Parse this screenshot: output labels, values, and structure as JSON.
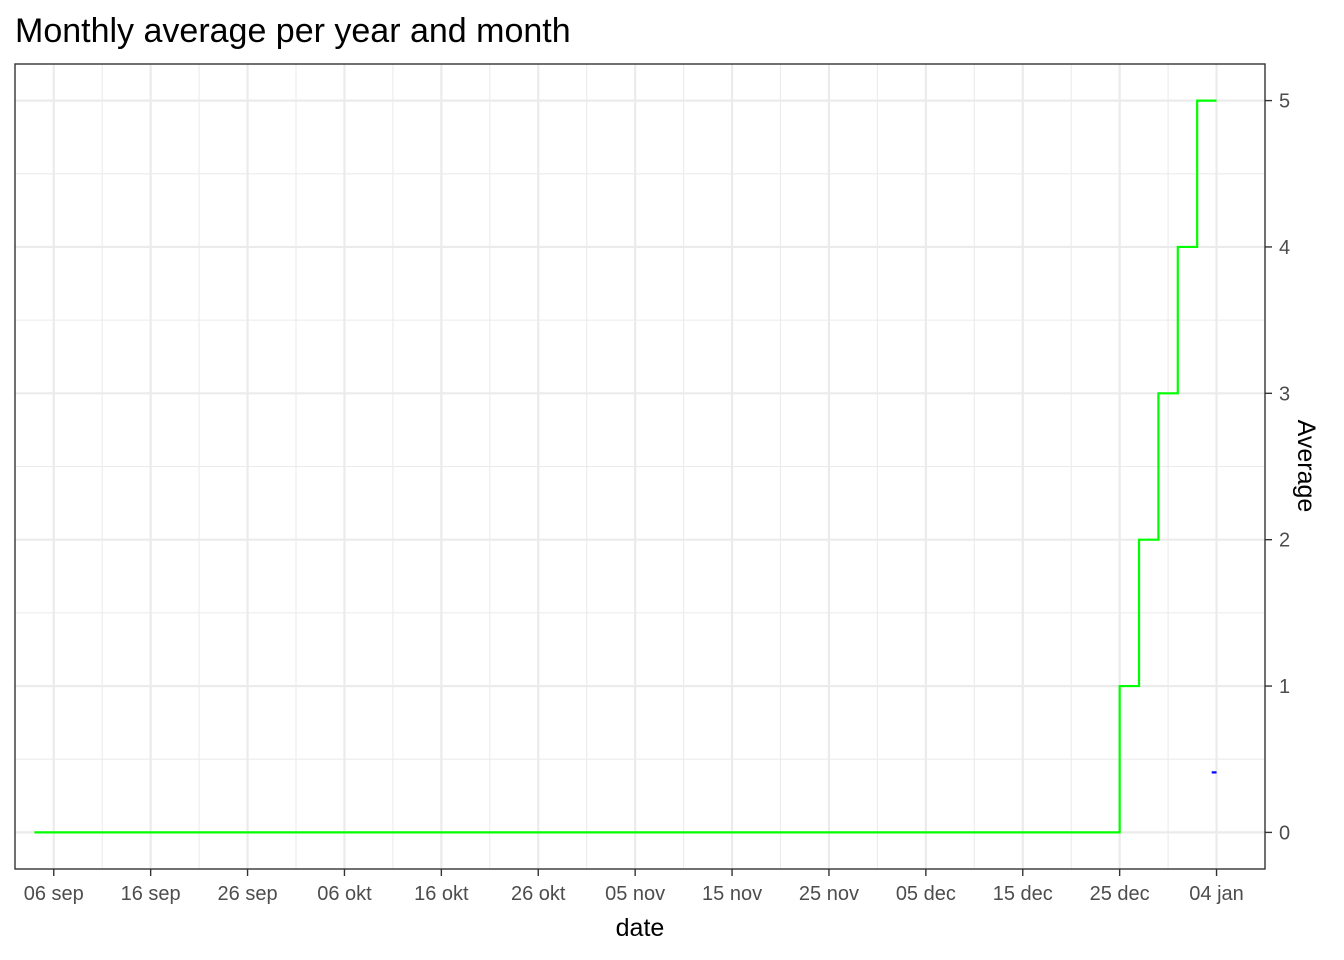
{
  "chart_data": {
    "type": "line",
    "title": "Monthly average per year and month",
    "xlabel": "date",
    "ylabel": "Average",
    "x_axis_type": "date",
    "y_axis_position": "right",
    "xlim": [
      "2024-09-02",
      "2025-01-09"
    ],
    "ylim": [
      -0.25,
      5.25
    ],
    "x_ticks": [
      {
        "date": "2024-09-06",
        "label": "06 sep"
      },
      {
        "date": "2024-09-16",
        "label": "16 sep"
      },
      {
        "date": "2024-09-26",
        "label": "26 sep"
      },
      {
        "date": "2024-10-06",
        "label": "06 okt"
      },
      {
        "date": "2024-10-16",
        "label": "16 okt"
      },
      {
        "date": "2024-10-26",
        "label": "26 okt"
      },
      {
        "date": "2024-11-05",
        "label": "05 nov"
      },
      {
        "date": "2024-11-15",
        "label": "15 nov"
      },
      {
        "date": "2024-11-25",
        "label": "25 nov"
      },
      {
        "date": "2024-12-05",
        "label": "05 dec"
      },
      {
        "date": "2024-12-15",
        "label": "15 dec"
      },
      {
        "date": "2024-12-25",
        "label": "25 dec"
      },
      {
        "date": "2025-01-04",
        "label": "04 jan"
      }
    ],
    "y_ticks": [
      0,
      1,
      2,
      3,
      4,
      5
    ],
    "grid": true,
    "legend": "none",
    "series": [
      {
        "color": "#00ff00",
        "shape": "step",
        "points": [
          {
            "x": "2024-09-04",
            "y": 0
          },
          {
            "x": "2024-12-25",
            "y": 1
          },
          {
            "x": "2024-12-27",
            "y": 2
          },
          {
            "x": "2024-12-29",
            "y": 3
          },
          {
            "x": "2024-12-31",
            "y": 4
          },
          {
            "x": "2025-01-02",
            "y": 5
          },
          {
            "x": "2025-01-04",
            "y": 5
          }
        ]
      },
      {
        "color": "#0000ff",
        "shape": "segment",
        "points": [
          {
            "x": "2025-01-03.5",
            "y": 0.41
          },
          {
            "x": "2025-01-04",
            "y": 0.41
          }
        ]
      }
    ]
  }
}
